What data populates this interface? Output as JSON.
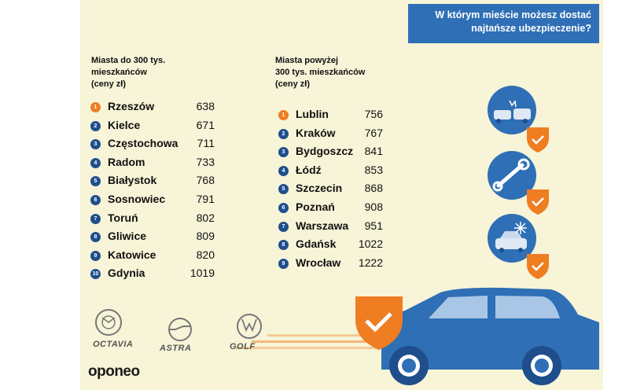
{
  "title": "W którym mieście możesz dostać najtańsze ubezpieczenie?",
  "left_header": [
    "Miasta do 300 tys.",
    "mieszkańców",
    "(ceny zł)"
  ],
  "right_header": [
    "Miasta powyżej",
    "300 tys. mieszkańców",
    "(ceny zł)"
  ],
  "small_cities": [
    {
      "rank": "1",
      "city": "Rzeszów",
      "price": "638"
    },
    {
      "rank": "2",
      "city": "Kielce",
      "price": "671"
    },
    {
      "rank": "3",
      "city": "Częstochowa",
      "price": "711"
    },
    {
      "rank": "4",
      "city": "Radom",
      "price": "733"
    },
    {
      "rank": "5",
      "city": "Białystok",
      "price": "768"
    },
    {
      "rank": "6",
      "city": "Sosnowiec",
      "price": "791"
    },
    {
      "rank": "7",
      "city": "Toruń",
      "price": "802"
    },
    {
      "rank": "8",
      "city": "Gliwice",
      "price": "809"
    },
    {
      "rank": "9",
      "city": "Katowice",
      "price": "820"
    },
    {
      "rank": "10",
      "city": "Gdynia",
      "price": "1019"
    }
  ],
  "large_cities": [
    {
      "rank": "1",
      "city": "Lublin",
      "price": "756"
    },
    {
      "rank": "2",
      "city": "Kraków",
      "price": "767"
    },
    {
      "rank": "3",
      "city": "Bydgoszcz",
      "price": "841"
    },
    {
      "rank": "4",
      "city": "Łódź",
      "price": "853"
    },
    {
      "rank": "5",
      "city": "Szczecin",
      "price": "868"
    },
    {
      "rank": "6",
      "city": "Poznań",
      "price": "908"
    },
    {
      "rank": "7",
      "city": "Warszawa",
      "price": "951"
    },
    {
      "rank": "8",
      "city": "Gdańsk",
      "price": "1022"
    },
    {
      "rank": "9",
      "city": "Wrocław",
      "price": "1222"
    }
  ],
  "car_models": [
    "OCTAVIA",
    "ASTRA",
    "GOLF"
  ],
  "brand": "oponeo",
  "colors": {
    "accent_orange": "#ef7d22",
    "blue": "#2f6fb5",
    "navy": "#1f4e8c",
    "background": "#f7f4d8"
  },
  "icons": [
    "car-crash-icon",
    "wrench-icon",
    "car-frost-icon",
    "shield-check-icon",
    "skoda-logo-icon",
    "opel-logo-icon",
    "vw-logo-icon",
    "car-illustration"
  ]
}
